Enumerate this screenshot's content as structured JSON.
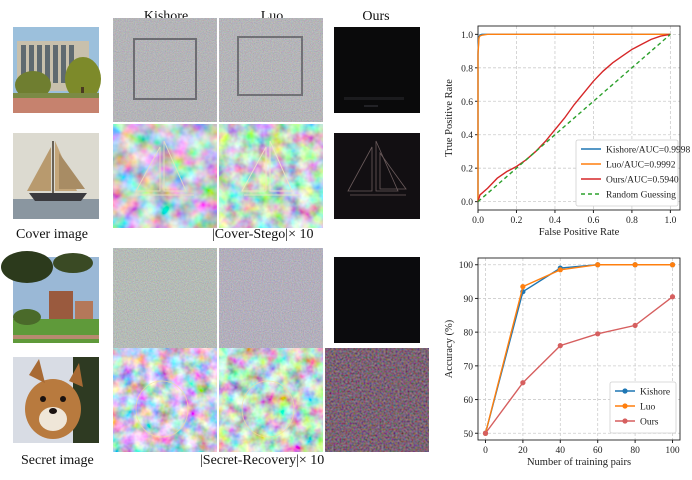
{
  "figure": {
    "column_headers": [
      "Kishore",
      "Luo",
      "Ours"
    ],
    "cover_caption": "Cover image",
    "cover_diff_caption": "|Cover-Stego|× 10",
    "secret_caption": "Secret image",
    "secret_diff_caption": "|Secret-Recovery|× 10"
  },
  "chart_data": [
    {
      "type": "line",
      "xlabel": "False Positive Rate",
      "ylabel": "True Positive Rate",
      "xlim": [
        0,
        1.05
      ],
      "ylim": [
        -0.05,
        1.05
      ],
      "xticks": [
        "0.0",
        "0.2",
        "0.4",
        "0.6",
        "0.8",
        "1.0"
      ],
      "yticks": [
        "0.0",
        "0.2",
        "0.4",
        "0.6",
        "0.8",
        "1.0"
      ],
      "grid": true,
      "legend_position": "bottom-right",
      "series": [
        {
          "name": "Kishore/AUC=0.9998",
          "color": "#1f77b4",
          "style": "solid",
          "x": [
            0,
            0.0,
            0.005,
            0.01,
            0.02,
            1.0
          ],
          "y": [
            0,
            0.9,
            0.985,
            0.995,
            1.0,
            1.0
          ]
        },
        {
          "name": "Luo/AUC=0.9992",
          "color": "#ff7f0e",
          "style": "solid",
          "x": [
            0,
            0.0,
            0.005,
            0.01,
            0.02,
            0.05,
            1.0
          ],
          "y": [
            0,
            0.88,
            0.98,
            0.99,
            0.995,
            1.0,
            1.0
          ]
        },
        {
          "name": "Ours/AUC=0.5940",
          "color": "#d62728",
          "style": "solid",
          "x": [
            0,
            0.01,
            0.05,
            0.1,
            0.15,
            0.2,
            0.25,
            0.3,
            0.35,
            0.4,
            0.45,
            0.5,
            0.55,
            0.6,
            0.65,
            0.7,
            0.75,
            0.8,
            0.85,
            0.9,
            0.95,
            1.0
          ],
          "y": [
            0,
            0.04,
            0.08,
            0.14,
            0.18,
            0.21,
            0.25,
            0.3,
            0.36,
            0.43,
            0.5,
            0.58,
            0.65,
            0.72,
            0.78,
            0.83,
            0.87,
            0.91,
            0.94,
            0.97,
            0.99,
            1.0
          ]
        },
        {
          "name": "Random Guessing",
          "color": "#2ca02c",
          "style": "dashed",
          "x": [
            0,
            1
          ],
          "y": [
            0,
            1
          ]
        }
      ]
    },
    {
      "type": "line",
      "xlabel": "Number of training pairs",
      "ylabel": "Accuracy (%)",
      "xlim": [
        -4,
        104
      ],
      "ylim": [
        48,
        102
      ],
      "xticks": [
        "0",
        "20",
        "40",
        "60",
        "80",
        "100"
      ],
      "yticks": [
        "50",
        "60",
        "70",
        "80",
        "90",
        "100"
      ],
      "grid": true,
      "legend_position": "bottom-right",
      "categories": [
        0,
        20,
        40,
        60,
        80,
        100
      ],
      "series": [
        {
          "name": "Kishore",
          "color": "#1f77b4",
          "values": [
            50,
            92,
            99,
            100,
            100,
            100
          ]
        },
        {
          "name": "Luo",
          "color": "#ff7f0e",
          "values": [
            50,
            93.5,
            98.5,
            100,
            100,
            100
          ]
        },
        {
          "name": "Ours",
          "color": "#d65f5f",
          "values": [
            50,
            65,
            76,
            79.5,
            82,
            90.5
          ]
        }
      ]
    }
  ]
}
